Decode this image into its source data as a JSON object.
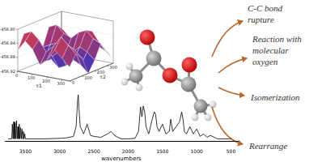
{
  "surface_plot": {
    "x_label": "τ1",
    "y_label": "τ2",
    "x": [
      0,
      50,
      100,
      150,
      200,
      250,
      300,
      350
    ],
    "y": [
      0,
      50,
      100,
      150,
      200,
      250,
      300,
      350
    ],
    "xticks": [
      0,
      100,
      200,
      300
    ],
    "yticks": [
      0,
      100,
      200,
      300
    ],
    "zlim": [
      -456.92,
      -456.8
    ],
    "zticks": [
      {
        "value": -456.92,
        "label": "-456.92"
      },
      {
        "value": -456.88,
        "label": "-456.88"
      },
      {
        "value": -456.84,
        "label": "-456.84"
      },
      {
        "value": -456.8,
        "label": "-456.80"
      }
    ],
    "z": [
      [
        -456.86,
        -456.82,
        -456.84,
        -456.9,
        -456.88,
        -456.83,
        -456.85,
        -456.89
      ],
      [
        -456.83,
        -456.81,
        -456.85,
        -456.91,
        -456.87,
        -456.82,
        -456.84,
        -456.9
      ],
      [
        -456.85,
        -456.83,
        -456.87,
        -456.9,
        -456.86,
        -456.84,
        -456.86,
        -456.88
      ],
      [
        -456.89,
        -456.86,
        -456.88,
        -456.92,
        -456.89,
        -456.85,
        -456.87,
        -456.91
      ],
      [
        -456.87,
        -456.84,
        -456.86,
        -456.91,
        -456.88,
        -456.83,
        -456.85,
        -456.9
      ],
      [
        -456.84,
        -456.81,
        -456.84,
        -456.89,
        -456.86,
        -456.82,
        -456.83,
        -456.88
      ],
      [
        -456.86,
        -456.83,
        -456.85,
        -456.9,
        -456.87,
        -456.84,
        -456.86,
        -456.89
      ],
      [
        -456.88,
        -456.85,
        -456.87,
        -456.92,
        -456.89,
        -456.85,
        -456.88,
        -456.91
      ]
    ]
  },
  "labels": [
    {
      "lines": [
        "C-C bond",
        "rupture"
      ]
    },
    {
      "lines": [
        "Reaction with",
        "molecular",
        "oxygen"
      ]
    },
    {
      "lines": [
        "Isomerization"
      ]
    },
    {
      "lines": [
        "Rearrange"
      ]
    }
  ],
  "chart_data": {
    "type": "line",
    "x_label": "wavenumbers",
    "color": "#000000",
    "xlim": [
      3800,
      400
    ],
    "xticks": [
      3500,
      3000,
      2500,
      2000,
      1500,
      1000,
      500
    ],
    "ylim": [
      0,
      1
    ],
    "grid": false,
    "tick_labels": "x",
    "x": [
      3750,
      3700,
      3690,
      3680,
      3670,
      3660,
      3650,
      3640,
      3630,
      3620,
      3610,
      3600,
      3590,
      3580,
      3570,
      3560,
      3550,
      3540,
      3530,
      3520,
      3510,
      3500,
      3400,
      3200,
      3000,
      2900,
      2800,
      2760,
      2740,
      2730,
      2720,
      2700,
      2650,
      2600,
      2550,
      2500,
      2400,
      2300,
      2250,
      2200,
      2150,
      2100,
      2000,
      1900,
      1850,
      1820,
      1800,
      1780,
      1760,
      1740,
      1700,
      1650,
      1620,
      1600,
      1580,
      1550,
      1500,
      1450,
      1400,
      1380,
      1350,
      1300,
      1250,
      1220,
      1200,
      1180,
      1150,
      1100,
      1050,
      1000,
      950,
      900,
      850,
      800,
      700,
      600,
      500
    ],
    "values": [
      0.05,
      0.05,
      0.35,
      0.05,
      0.4,
      0.05,
      0.38,
      0.05,
      0.42,
      0.05,
      0.3,
      0.05,
      0.35,
      0.05,
      0.28,
      0.05,
      0.25,
      0.05,
      0.2,
      0.05,
      0.15,
      0.05,
      0.05,
      0.05,
      0.06,
      0.07,
      0.1,
      0.3,
      0.8,
      0.95,
      0.7,
      0.3,
      0.15,
      0.35,
      0.12,
      0.1,
      0.08,
      0.15,
      0.2,
      0.12,
      0.08,
      0.05,
      0.05,
      0.06,
      0.2,
      0.7,
      0.5,
      0.72,
      0.6,
      0.3,
      0.15,
      0.45,
      0.6,
      0.55,
      0.3,
      0.2,
      0.35,
      0.15,
      0.2,
      0.45,
      0.2,
      0.3,
      0.4,
      0.6,
      0.45,
      0.2,
      0.15,
      0.3,
      0.15,
      0.25,
      0.1,
      0.15,
      0.08,
      0.12,
      0.05,
      0.05,
      0.05
    ]
  }
}
